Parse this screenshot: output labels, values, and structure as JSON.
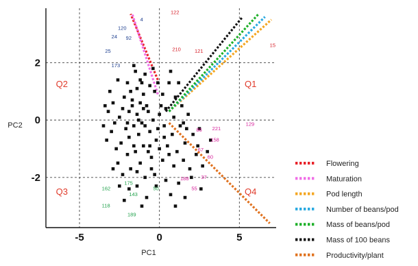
{
  "chart_data": {
    "type": "scatter",
    "title": "",
    "xlabel": "PC1",
    "ylabel": "PC2",
    "xlim": [
      -7.1,
      7.3
    ],
    "ylim": [
      -3.75,
      3.9
    ],
    "x_ticks": [
      {
        "value": -5,
        "label": "-5"
      },
      {
        "value": 0,
        "label": "0"
      },
      {
        "value": 5,
        "label": "5"
      }
    ],
    "y_ticks": [
      {
        "value": 2,
        "label": "2"
      },
      {
        "value": 0,
        "label": "0"
      },
      {
        "value": -2,
        "label": "-2"
      }
    ],
    "gridlines": "dashed at ticks",
    "legend_position": "bottom-right, outside plot",
    "quadrants": [
      {
        "label": "Q1",
        "x": 5.7,
        "y": 1.15
      },
      {
        "label": "Q2",
        "x": -6.1,
        "y": 1.15
      },
      {
        "label": "Q3",
        "x": -6.1,
        "y": -2.6
      },
      {
        "label": "Q4",
        "x": 5.7,
        "y": -2.6
      }
    ],
    "loadings": [
      {
        "name": "Flowering",
        "color": "#e8232a",
        "start": [
          -0.1,
          1.4
        ],
        "end": [
          -1.8,
          3.7
        ]
      },
      {
        "name": "Maturation",
        "color": "#f06ee6",
        "start": [
          -0.1,
          0.9
        ],
        "end": [
          -1.7,
          3.7
        ]
      },
      {
        "name": "Pod length",
        "color": "#f4a621",
        "start": [
          0.6,
          0.3
        ],
        "end": [
          7.0,
          3.5
        ]
      },
      {
        "name": "Number of beans/pod",
        "color": "#29a9e0",
        "start": [
          0.6,
          0.3
        ],
        "end": [
          6.6,
          3.6
        ]
      },
      {
        "name": "Mass of beans/pod",
        "color": "#1fb02a",
        "start": [
          0.6,
          0.3
        ],
        "end": [
          6.2,
          3.7
        ]
      },
      {
        "name": "Mass of 100 beans",
        "color": "#111111",
        "start": [
          0.4,
          0.3
        ],
        "end": [
          5.2,
          3.6
        ]
      },
      {
        "name": "Productivity/plant",
        "color": "#e0721f",
        "start": [
          0.6,
          -0.1
        ],
        "end": [
          6.9,
          -3.6
        ]
      }
    ],
    "points": [
      [
        -1.5,
        1.7
      ],
      [
        -1.2,
        1.4
      ],
      [
        -0.9,
        1.6
      ],
      [
        -2.0,
        1.3
      ],
      [
        -1.8,
        1.0
      ],
      [
        -1.4,
        1.1
      ],
      [
        -0.6,
        1.2
      ],
      [
        -1.0,
        0.9
      ],
      [
        -2.6,
        1.4
      ],
      [
        -0.3,
        1.0
      ],
      [
        -1.7,
        0.7
      ],
      [
        -1.2,
        0.6
      ],
      [
        -0.8,
        0.5
      ],
      [
        -2.2,
        0.8
      ],
      [
        -2.9,
        0.6
      ],
      [
        -3.2,
        0.3
      ],
      [
        -1.9,
        0.3
      ],
      [
        -1.4,
        0.2
      ],
      [
        -0.7,
        0.3
      ],
      [
        -2.5,
        0.1
      ],
      [
        -1.1,
        -0.1
      ],
      [
        -0.4,
        0.0
      ],
      [
        -1.6,
        -0.2
      ],
      [
        -2.1,
        -0.3
      ],
      [
        -2.8,
        -0.1
      ],
      [
        -3.0,
        -0.4
      ],
      [
        -1.3,
        -0.5
      ],
      [
        -0.6,
        -0.4
      ],
      [
        -1.9,
        -0.6
      ],
      [
        -2.4,
        -0.8
      ],
      [
        -1.0,
        -0.9
      ],
      [
        -0.2,
        -0.7
      ],
      [
        -1.5,
        -1.1
      ],
      [
        -2.0,
        -1.2
      ],
      [
        -2.7,
        -1.0
      ],
      [
        -1.2,
        -1.5
      ],
      [
        -0.5,
        -1.3
      ],
      [
        -1.8,
        -1.7
      ],
      [
        -2.3,
        -1.9
      ],
      [
        -0.9,
        -2.0
      ],
      [
        -1.4,
        -2.3
      ],
      [
        -0.3,
        -1.9
      ],
      [
        -1.9,
        -2.4
      ],
      [
        -0.8,
        -2.7
      ],
      [
        -2.5,
        -2.3
      ],
      [
        -1.1,
        -3.0
      ],
      [
        -2.2,
        -2.8
      ],
      [
        -0.6,
        -0.9
      ],
      [
        -1.7,
        0.5
      ],
      [
        -1.1,
        1.3
      ],
      [
        0.2,
        0.9
      ],
      [
        0.6,
        1.3
      ],
      [
        1.0,
        0.8
      ],
      [
        0.4,
        0.4
      ],
      [
        0.9,
        0.1
      ],
      [
        1.4,
        0.5
      ],
      [
        0.3,
        -0.2
      ],
      [
        0.8,
        -0.5
      ],
      [
        1.3,
        -0.2
      ],
      [
        1.8,
        0.2
      ],
      [
        0.5,
        -0.9
      ],
      [
        1.1,
        -1.1
      ],
      [
        1.6,
        -0.8
      ],
      [
        2.1,
        -0.5
      ],
      [
        0.2,
        -1.4
      ],
      [
        0.9,
        -1.6
      ],
      [
        1.5,
        -1.4
      ],
      [
        2.3,
        -1.2
      ],
      [
        0.4,
        -2.1
      ],
      [
        1.2,
        -2.2
      ],
      [
        2.0,
        -2.0
      ],
      [
        2.7,
        -1.6
      ],
      [
        0.7,
        -2.6
      ],
      [
        1.6,
        -2.7
      ],
      [
        3.0,
        -1.1
      ],
      [
        2.5,
        -0.3
      ],
      [
        0.1,
        0.5
      ],
      [
        -0.1,
        -0.3
      ],
      [
        0.3,
        -0.6
      ],
      [
        1.9,
        -1.7
      ],
      [
        -3.1,
        1.0
      ],
      [
        -3.3,
        -0.7
      ],
      [
        -2.6,
        -1.5
      ],
      [
        -1.6,
        1.9
      ],
      [
        -0.4,
        1.8
      ],
      [
        0.7,
        1.7
      ],
      [
        1.2,
        1.3
      ],
      [
        -0.2,
        -2.3
      ],
      [
        1.0,
        -3.0
      ],
      [
        2.6,
        -2.4
      ],
      [
        -1.3,
        0.0
      ],
      [
        -0.9,
        -0.2
      ],
      [
        -2.3,
        0.4
      ],
      [
        0.0,
        0.2
      ],
      [
        -0.5,
        -1.7
      ],
      [
        1.7,
        -0.3
      ],
      [
        2.4,
        -0.9
      ],
      [
        3.2,
        -0.7
      ],
      [
        -2.9,
        -1.7
      ],
      [
        -3.5,
        -0.2
      ],
      [
        -1.6,
        -0.9
      ],
      [
        -0.7,
        -1.1
      ],
      [
        0.6,
        -1.2
      ],
      [
        -1.0,
        0.4
      ],
      [
        1.5,
        -0.1
      ],
      [
        -2.0,
        -0.1
      ],
      [
        0.0,
        -1.0
      ],
      [
        -3.4,
        0.5
      ],
      [
        -0.1,
        1.3
      ],
      [
        -1.4,
        -1.8
      ]
    ],
    "point_labels": [
      {
        "text": "122",
        "x": 0.7,
        "y": 3.7,
        "color": "#d6202a"
      },
      {
        "text": "4",
        "x": -1.2,
        "y": 3.45,
        "color": "#1e3f8f"
      },
      {
        "text": "120",
        "x": -2.6,
        "y": 3.15,
        "color": "#1e3f8f"
      },
      {
        "text": "24",
        "x": -3.0,
        "y": 2.85,
        "color": "#1e3f8f"
      },
      {
        "text": "92",
        "x": -2.1,
        "y": 2.8,
        "color": "#1e3f8f"
      },
      {
        "text": "25",
        "x": -3.4,
        "y": 2.35,
        "color": "#1e3f8f"
      },
      {
        "text": "173",
        "x": -3.0,
        "y": 1.85,
        "color": "#1e3f8f"
      },
      {
        "text": "210",
        "x": 0.8,
        "y": 2.4,
        "color": "#d6202a"
      },
      {
        "text": "121",
        "x": 2.2,
        "y": 2.35,
        "color": "#d6202a"
      },
      {
        "text": "15",
        "x": 6.9,
        "y": 2.55,
        "color": "#d6202a"
      },
      {
        "text": "221",
        "x": 3.3,
        "y": -0.35,
        "color": "#d6209a"
      },
      {
        "text": "129",
        "x": 5.4,
        "y": -0.2,
        "color": "#d6209a"
      },
      {
        "text": "86",
        "x": 2.3,
        "y": -0.4,
        "color": "#d6209a"
      },
      {
        "text": "158",
        "x": 3.2,
        "y": -0.75,
        "color": "#d6209a"
      },
      {
        "text": "67",
        "x": 2.4,
        "y": -1.1,
        "color": "#d6209a"
      },
      {
        "text": "60",
        "x": 3.0,
        "y": -1.35,
        "color": "#d6209a"
      },
      {
        "text": "37",
        "x": 2.6,
        "y": -2.05,
        "color": "#d6209a"
      },
      {
        "text": "188",
        "x": 1.3,
        "y": -2.1,
        "color": "#d6209a"
      },
      {
        "text": "55",
        "x": 2.0,
        "y": -2.45,
        "color": "#d6209a"
      },
      {
        "text": "175",
        "x": -2.2,
        "y": -2.25,
        "color": "#1fa04a"
      },
      {
        "text": "162",
        "x": -3.6,
        "y": -2.45,
        "color": "#1fa04a"
      },
      {
        "text": "143",
        "x": -1.9,
        "y": -2.65,
        "color": "#1fa04a"
      },
      {
        "text": "50",
        "x": -0.4,
        "y": -2.45,
        "color": "#1fa04a"
      },
      {
        "text": "118",
        "x": -3.6,
        "y": -3.05,
        "color": "#1fa04a"
      },
      {
        "text": "189",
        "x": -2.0,
        "y": -3.35,
        "color": "#1fa04a"
      }
    ]
  }
}
